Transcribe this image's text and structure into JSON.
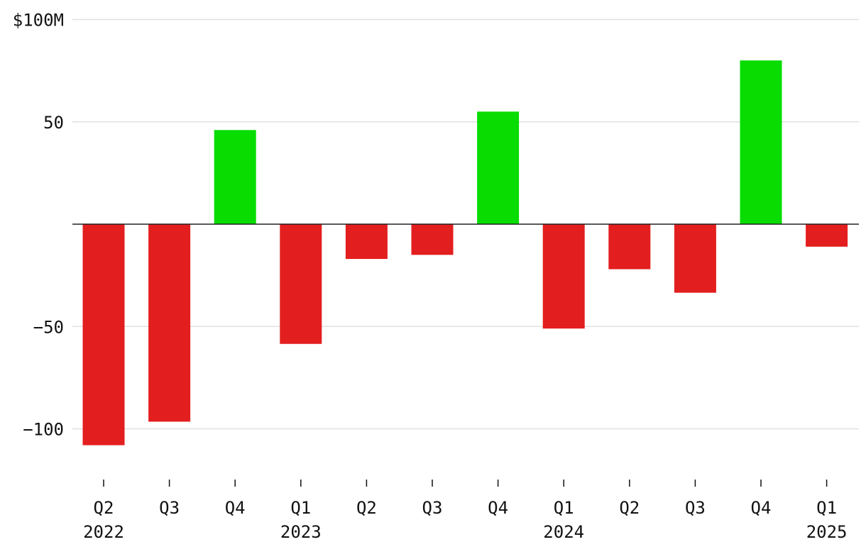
{
  "chart_data": {
    "type": "bar",
    "title": "",
    "xlabel": "",
    "ylabel": "",
    "y_unit_label": "$100M",
    "ylim": [
      -125,
      100
    ],
    "yticks": [
      {
        "value": 100,
        "label": "$100M"
      },
      {
        "value": 50,
        "label": "50"
      },
      {
        "value": -50,
        "label": "−50"
      },
      {
        "value": -100,
        "label": "−100"
      }
    ],
    "grid": true,
    "categories": [
      {
        "quarter": "Q2",
        "year": "2022"
      },
      {
        "quarter": "Q3",
        "year": ""
      },
      {
        "quarter": "Q4",
        "year": ""
      },
      {
        "quarter": "Q1",
        "year": "2023"
      },
      {
        "quarter": "Q2",
        "year": ""
      },
      {
        "quarter": "Q3",
        "year": ""
      },
      {
        "quarter": "Q4",
        "year": ""
      },
      {
        "quarter": "Q1",
        "year": "2024"
      },
      {
        "quarter": "Q2",
        "year": ""
      },
      {
        "quarter": "Q3",
        "year": ""
      },
      {
        "quarter": "Q4",
        "year": ""
      },
      {
        "quarter": "Q1",
        "year": "2025"
      }
    ],
    "values": [
      -108,
      -96.5,
      46,
      -58.5,
      -17,
      -15,
      55,
      -51,
      -22,
      -33.5,
      80,
      -11
    ],
    "colors": {
      "positive": "#08dc00",
      "negative": "#e31e1e",
      "grid": "#e0e0e0",
      "zero_line": "#222222",
      "text": "#111111"
    }
  }
}
